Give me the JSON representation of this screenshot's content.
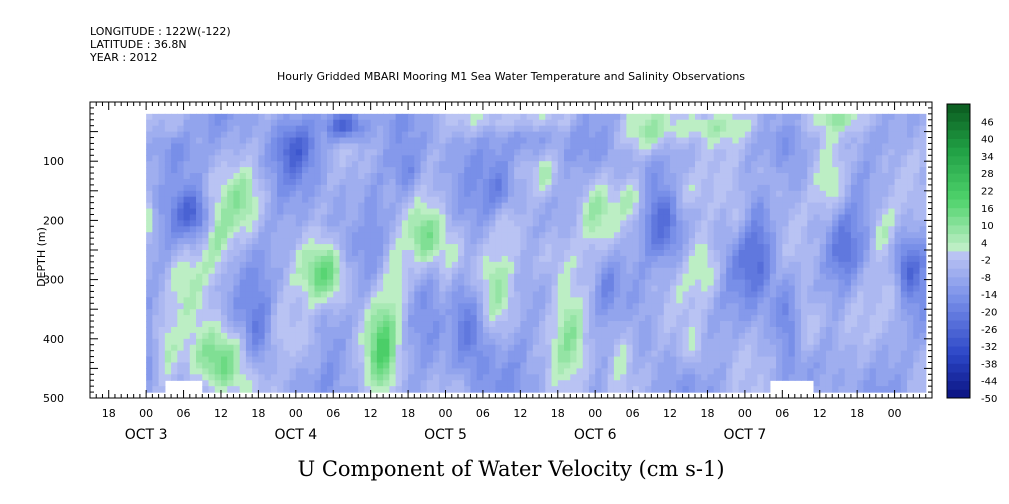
{
  "header": {
    "longitude": "LONGITUDE : 122W(-122)",
    "latitude": "LATITUDE : 36.8N",
    "year": "YEAR : 2012",
    "title": "Hourly Gridded MBARI Mooring M1 Sea Water Temperature and Salinity Observations"
  },
  "footer": {
    "variable_title": "U Component of Water Velocity (cm s-1)"
  },
  "chart_data": {
    "type": "heatmap",
    "title": "Hourly Gridded MBARI Mooring M1 Sea Water Temperature and Salinity Observations",
    "variable": "U Component of Water Velocity (cm s-1)",
    "ylabel": "DEPTH (m)",
    "y_axis": {
      "ticks": [
        100,
        200,
        300,
        400,
        500
      ],
      "range": [
        0,
        500
      ],
      "inverted": true
    },
    "x_axis": {
      "hour_ticks": [
        "18",
        "00",
        "06",
        "12",
        "18",
        "00",
        "06",
        "12",
        "18",
        "00",
        "06",
        "12",
        "18",
        "00",
        "06",
        "12",
        "18",
        "00",
        "06",
        "12",
        "18",
        "00"
      ],
      "day_labels": [
        "OCT 3",
        "OCT 4",
        "OCT 5",
        "OCT 6",
        "OCT 7"
      ],
      "range_hours": [
        -9,
        126
      ]
    },
    "data_extent": {
      "start_hour": 0,
      "end_hour": 125,
      "min_depth_m": 20,
      "max_depth_m": 490
    },
    "colorbar": {
      "labels": [
        "46",
        "40",
        "34",
        "28",
        "22",
        "16",
        "10",
        "4",
        "-2",
        "-8",
        "-14",
        "-20",
        "-26",
        "-32",
        "-38",
        "-44",
        "-50"
      ],
      "min": -50,
      "max": 52,
      "step": 3
    },
    "palette": {
      "negative_light": "#c0c8f4",
      "negative_mid": "#7d93ea",
      "negative_dark": "#2c47c7",
      "negative_deepest": "#0a1280",
      "positive_light": "#c6f0cc",
      "positive_mid": "#4fd36c",
      "positive_dark": "#1f9e43",
      "positive_deepest": "#0b5a20"
    }
  }
}
